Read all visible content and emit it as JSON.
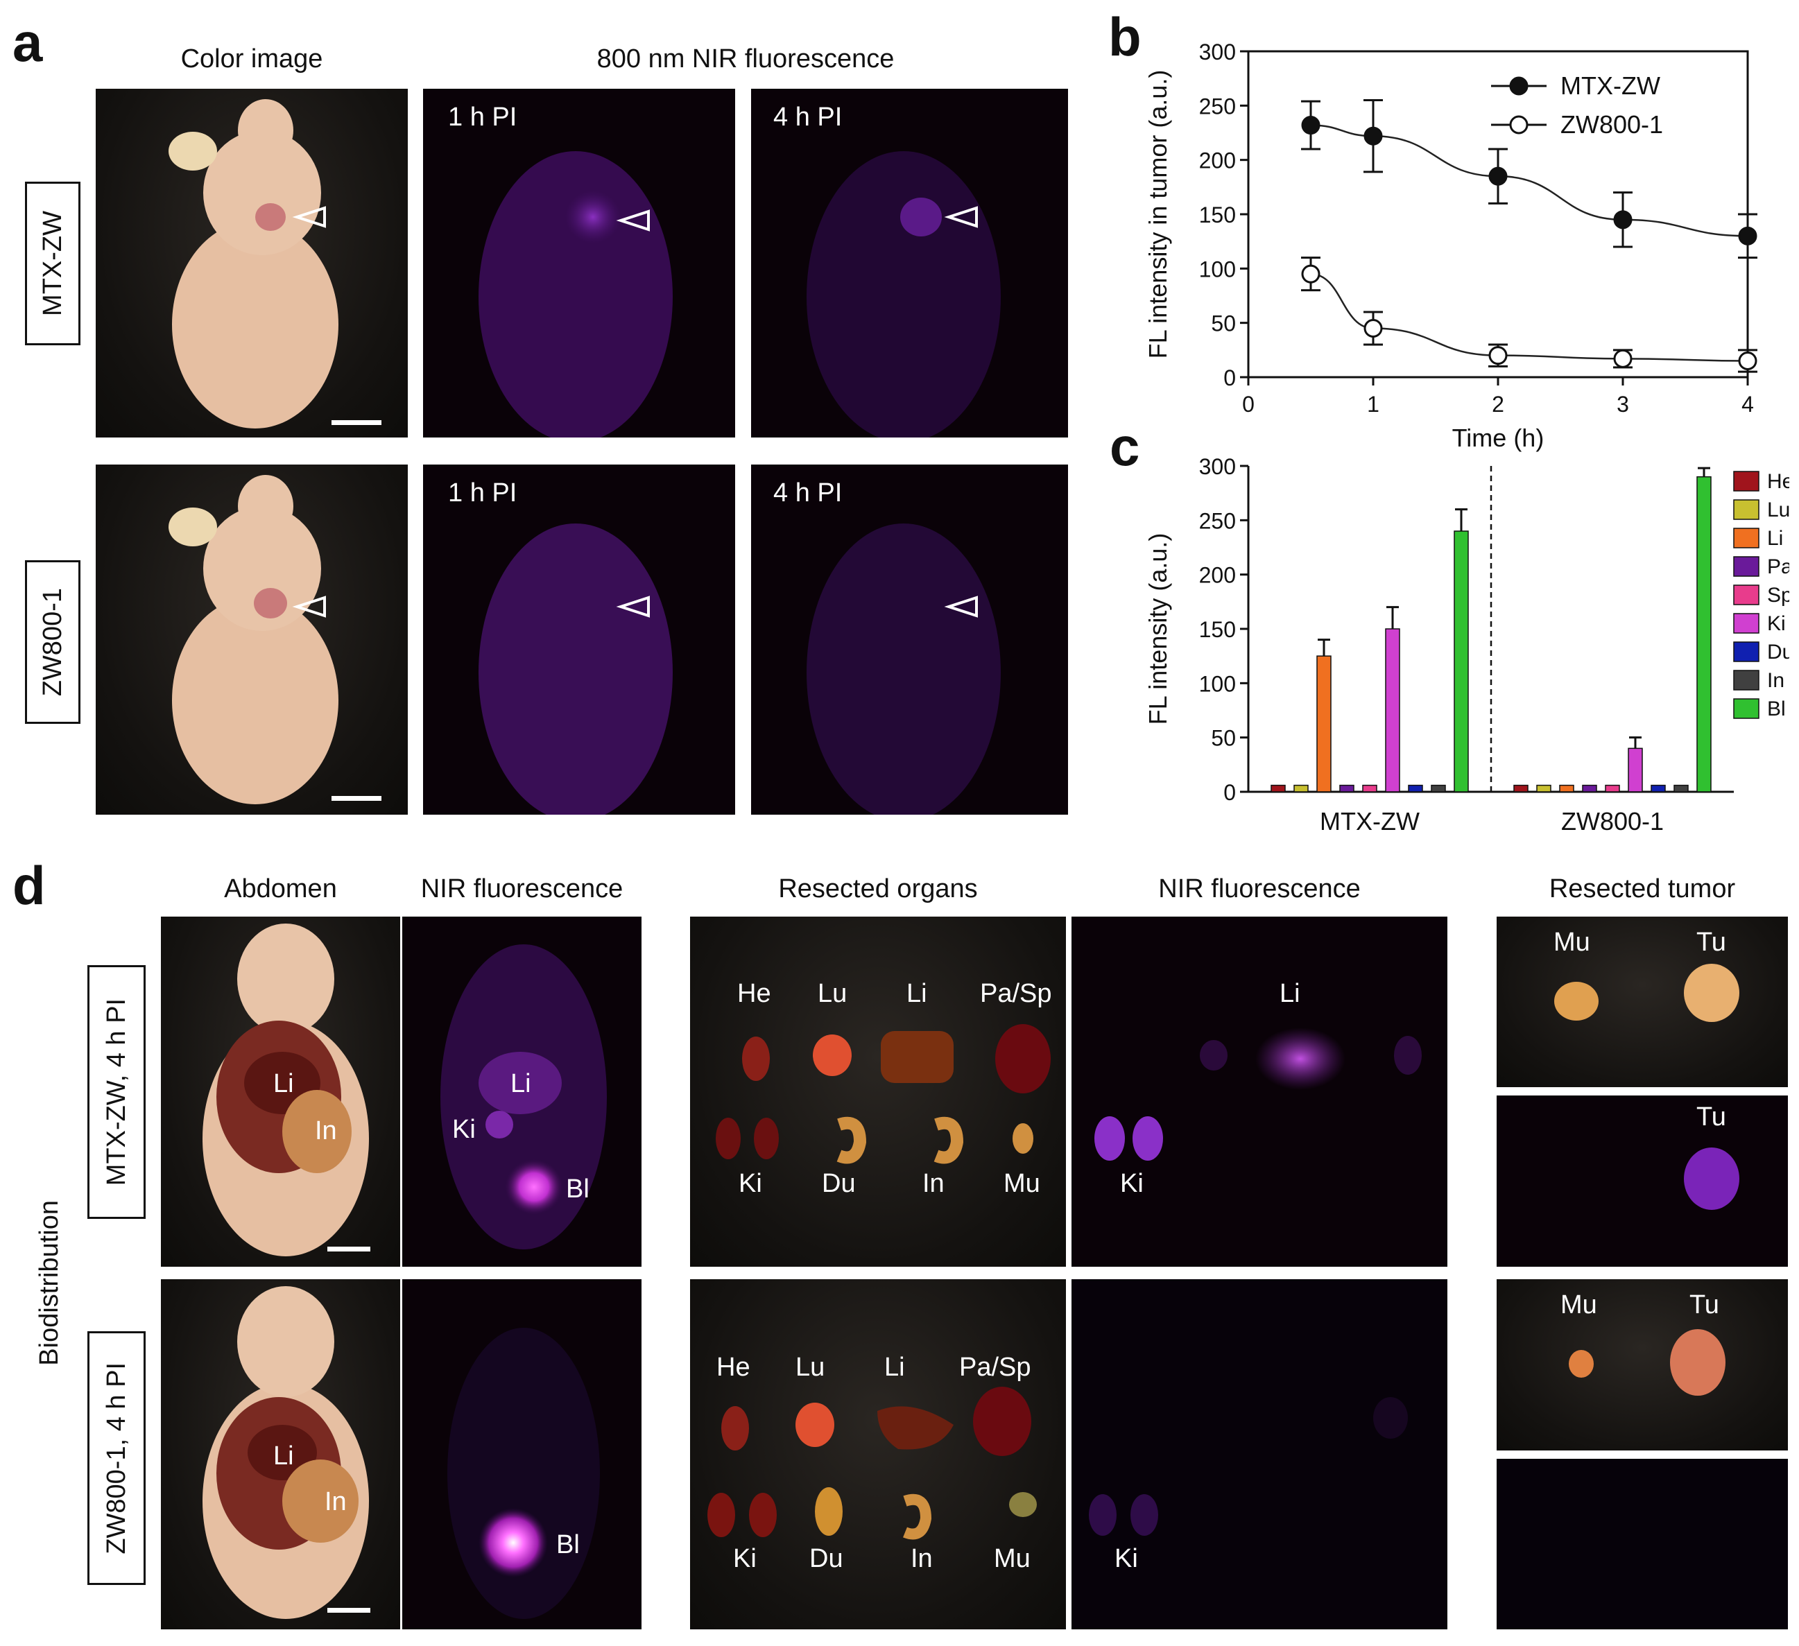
{
  "panels": {
    "a": "a",
    "b": "b",
    "c": "c",
    "d": "d"
  },
  "panel_a": {
    "header_color": "Color image",
    "header_nir": "800 nm NIR fluorescence",
    "row1_label": "MTX-ZW",
    "row2_label": "ZW800-1",
    "time1": "1 h PI",
    "time2": "4 h PI"
  },
  "panel_d": {
    "header_abdomen": "Abdomen",
    "header_nir1": "NIR fluorescence",
    "header_organs": "Resected organs",
    "header_nir2": "NIR fluorescence",
    "header_tumor": "Resected tumor",
    "side_label": "Biodistribution",
    "row1_label": "MTX-ZW, 4 h PI",
    "row2_label": "ZW800-1, 4 h PI",
    "organs": {
      "he": "He",
      "lu": "Lu",
      "li": "Li",
      "pasp": "Pa/Sp",
      "ki": "Ki",
      "du": "Du",
      "in": "In",
      "mu": "Mu",
      "tu": "Tu",
      "bl": "Bl"
    }
  },
  "chart_data": [
    {
      "type": "line",
      "panel": "b",
      "xlabel": "Time (h)",
      "ylabel": "FL intensity in tumor (a.u.)",
      "xlim": [
        0,
        4
      ],
      "ylim": [
        0,
        300
      ],
      "xticks": [
        "0",
        "1",
        "2",
        "3",
        "4"
      ],
      "yticks": [
        "0",
        "50",
        "100",
        "150",
        "200",
        "250",
        "300"
      ],
      "legend_position": "top-right",
      "series": [
        {
          "name": "MTX-ZW",
          "marker": "filled-circle",
          "x": [
            0.5,
            1,
            2,
            3,
            4
          ],
          "y": [
            232,
            222,
            185,
            145,
            130
          ],
          "err": [
            22,
            33,
            25,
            25,
            20
          ]
        },
        {
          "name": "ZW800-1",
          "marker": "open-circle",
          "x": [
            0.5,
            1,
            2,
            3,
            4
          ],
          "y": [
            95,
            45,
            20,
            17,
            15
          ],
          "err": [
            15,
            15,
            10,
            8,
            10
          ]
        }
      ]
    },
    {
      "type": "bar",
      "panel": "c",
      "ylabel": "FL intensity (a.u.)",
      "ylim": [
        0,
        300
      ],
      "yticks": [
        "0",
        "50",
        "100",
        "150",
        "200",
        "250",
        "300"
      ],
      "groups": [
        "MTX-ZW",
        "ZW800-1"
      ],
      "legend_position": "right",
      "series": [
        {
          "name": "He",
          "color": "#a0141c",
          "values": [
            6,
            6
          ],
          "err": [
            0,
            0
          ]
        },
        {
          "name": "Lu",
          "color": "#c8c030",
          "values": [
            6,
            6
          ],
          "err": [
            0,
            0
          ]
        },
        {
          "name": "Li",
          "color": "#f07020",
          "values": [
            125,
            6
          ],
          "err": [
            15,
            0
          ]
        },
        {
          "name": "Pa",
          "color": "#6a1a9a",
          "values": [
            6,
            6
          ],
          "err": [
            0,
            0
          ]
        },
        {
          "name": "Sp",
          "color": "#e83c8c",
          "values": [
            6,
            6
          ],
          "err": [
            0,
            0
          ]
        },
        {
          "name": "Ki",
          "color": "#d040d0",
          "values": [
            150,
            40
          ],
          "err": [
            20,
            10
          ]
        },
        {
          "name": "Du",
          "color": "#1020b0",
          "values": [
            6,
            6
          ],
          "err": [
            0,
            0
          ]
        },
        {
          "name": "In",
          "color": "#404040",
          "values": [
            6,
            6
          ],
          "err": [
            0,
            0
          ]
        },
        {
          "name": "Bl",
          "color": "#30c030",
          "values": [
            240,
            290
          ],
          "err": [
            20,
            8
          ]
        }
      ]
    }
  ]
}
